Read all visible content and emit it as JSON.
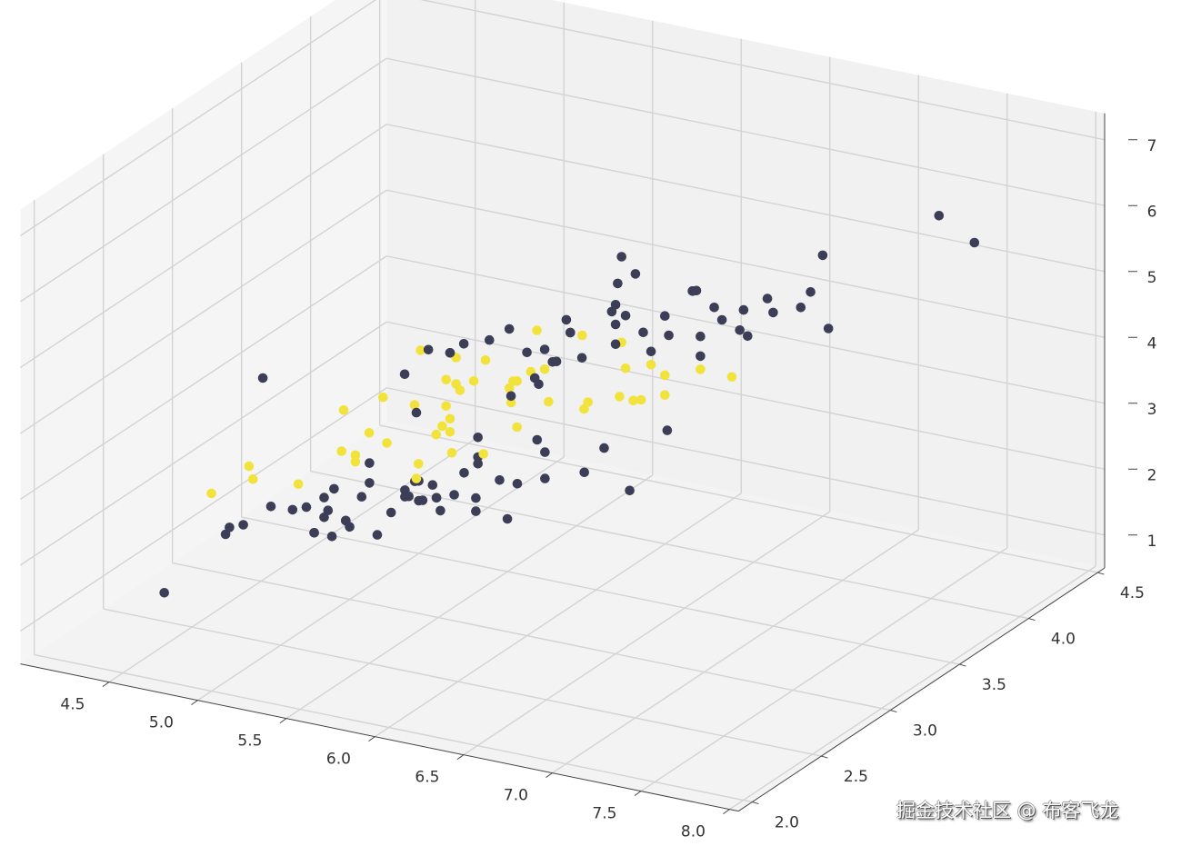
{
  "chart_data": {
    "type": "scatter3d",
    "title": "",
    "xlabel": "",
    "ylabel": "",
    "zlabel": "",
    "xlim": [
      4.0,
      8.05
    ],
    "ylim": [
      1.9,
      4.55
    ],
    "zlim": [
      0.5,
      7.4
    ],
    "grid": true,
    "x_ticks": [
      "4.5",
      "5.0",
      "5.5",
      "6.0",
      "6.5",
      "7.0",
      "7.5",
      "8.0"
    ],
    "y_ticks": [
      "2.0",
      "2.5",
      "3.0",
      "3.5",
      "4.0",
      "4.5"
    ],
    "z_ticks": [
      "1",
      "2",
      "3",
      "4",
      "5",
      "6",
      "7"
    ],
    "colors": {
      "class_0": "#3b3e56",
      "class_1": "#f2e33c",
      "pane": "#f4f4f4",
      "grid": "#d3d3d3",
      "axis": "#444444"
    },
    "points": [
      [
        5.1,
        3.5,
        1.4,
        0
      ],
      [
        4.9,
        3.0,
        1.4,
        0
      ],
      [
        4.7,
        3.2,
        1.3,
        0
      ],
      [
        4.6,
        3.1,
        1.5,
        0
      ],
      [
        5.0,
        3.6,
        1.4,
        0
      ],
      [
        5.4,
        3.9,
        1.7,
        0
      ],
      [
        4.6,
        3.4,
        1.4,
        0
      ],
      [
        5.0,
        3.4,
        1.5,
        0
      ],
      [
        4.4,
        2.9,
        1.4,
        0
      ],
      [
        4.9,
        3.1,
        1.5,
        0
      ],
      [
        5.4,
        3.7,
        1.5,
        0
      ],
      [
        4.8,
        3.4,
        1.6,
        0
      ],
      [
        4.8,
        3.0,
        1.4,
        0
      ],
      [
        4.3,
        3.0,
        1.1,
        0
      ],
      [
        5.8,
        4.0,
        1.2,
        0
      ],
      [
        5.7,
        4.4,
        1.5,
        0
      ],
      [
        5.4,
        3.9,
        1.3,
        0
      ],
      [
        5.1,
        3.5,
        1.4,
        0
      ],
      [
        5.7,
        3.8,
        1.7,
        0
      ],
      [
        5.1,
        3.8,
        1.5,
        0
      ],
      [
        5.4,
        3.4,
        1.7,
        0
      ],
      [
        5.1,
        3.7,
        1.5,
        0
      ],
      [
        4.6,
        3.6,
        1.0,
        0
      ],
      [
        5.1,
        3.3,
        1.7,
        0
      ],
      [
        4.8,
        3.4,
        1.9,
        0
      ],
      [
        5.0,
        3.0,
        1.6,
        0
      ],
      [
        5.0,
        3.4,
        1.6,
        0
      ],
      [
        5.2,
        3.5,
        1.5,
        0
      ],
      [
        5.2,
        3.4,
        1.4,
        0
      ],
      [
        4.7,
        3.2,
        1.6,
        0
      ],
      [
        4.8,
        3.1,
        1.6,
        0
      ],
      [
        5.4,
        3.4,
        1.5,
        0
      ],
      [
        5.2,
        4.1,
        1.5,
        0
      ],
      [
        5.5,
        4.2,
        1.4,
        0
      ],
      [
        4.9,
        3.1,
        1.5,
        0
      ],
      [
        5.0,
        3.2,
        1.2,
        0
      ],
      [
        5.5,
        3.5,
        1.3,
        0
      ],
      [
        4.9,
        3.6,
        1.4,
        0
      ],
      [
        4.4,
        3.0,
        1.3,
        0
      ],
      [
        5.1,
        3.4,
        1.5,
        0
      ],
      [
        5.0,
        3.5,
        1.3,
        0
      ],
      [
        4.5,
        2.3,
        1.3,
        0
      ],
      [
        4.4,
        3.2,
        1.3,
        0
      ],
      [
        5.0,
        3.5,
        1.6,
        0
      ],
      [
        5.1,
        3.8,
        1.9,
        0
      ],
      [
        4.8,
        3.0,
        1.4,
        0
      ],
      [
        5.1,
        3.8,
        1.6,
        0
      ],
      [
        4.6,
        3.2,
        1.4,
        0
      ],
      [
        5.3,
        3.7,
        1.5,
        0
      ],
      [
        5.0,
        3.3,
        1.4,
        0
      ],
      [
        7.0,
        3.2,
        4.7,
        1
      ],
      [
        6.4,
        3.2,
        4.5,
        1
      ],
      [
        6.9,
        3.1,
        4.9,
        1
      ],
      [
        5.5,
        2.3,
        4.0,
        1
      ],
      [
        6.5,
        2.8,
        4.6,
        1
      ],
      [
        5.7,
        2.8,
        4.5,
        1
      ],
      [
        6.3,
        3.3,
        4.7,
        1
      ],
      [
        4.9,
        2.4,
        3.3,
        1
      ],
      [
        6.6,
        2.9,
        4.6,
        1
      ],
      [
        5.2,
        2.7,
        3.9,
        1
      ],
      [
        5.0,
        2.0,
        3.5,
        1
      ],
      [
        5.9,
        3.0,
        4.2,
        1
      ],
      [
        6.0,
        2.2,
        4.0,
        1
      ],
      [
        6.1,
        2.9,
        4.7,
        1
      ],
      [
        5.6,
        2.9,
        3.6,
        1
      ],
      [
        6.7,
        3.1,
        4.4,
        1
      ],
      [
        5.6,
        3.0,
        4.5,
        1
      ],
      [
        5.8,
        2.7,
        4.1,
        1
      ],
      [
        6.2,
        2.2,
        4.5,
        1
      ],
      [
        5.6,
        2.5,
        3.9,
        1
      ],
      [
        5.9,
        3.2,
        4.8,
        1
      ],
      [
        6.1,
        2.8,
        4.0,
        1
      ],
      [
        6.3,
        2.5,
        4.9,
        1
      ],
      [
        6.1,
        2.8,
        4.7,
        1
      ],
      [
        6.4,
        2.9,
        4.3,
        1
      ],
      [
        6.6,
        3.0,
        4.4,
        1
      ],
      [
        6.8,
        2.8,
        4.8,
        1
      ],
      [
        6.7,
        3.0,
        5.0,
        1
      ],
      [
        6.0,
        2.9,
        4.5,
        1
      ],
      [
        5.7,
        2.6,
        3.5,
        1
      ],
      [
        5.5,
        2.4,
        3.8,
        1
      ],
      [
        5.5,
        2.4,
        3.7,
        1
      ],
      [
        5.8,
        2.7,
        3.9,
        1
      ],
      [
        6.0,
        2.7,
        5.1,
        1
      ],
      [
        5.4,
        3.0,
        4.5,
        1
      ],
      [
        6.0,
        3.4,
        4.5,
        1
      ],
      [
        6.7,
        3.1,
        4.7,
        1
      ],
      [
        6.3,
        2.3,
        4.4,
        1
      ],
      [
        5.6,
        3.0,
        4.1,
        1
      ],
      [
        5.5,
        2.5,
        4.0,
        1
      ],
      [
        5.5,
        2.6,
        4.4,
        1
      ],
      [
        6.1,
        3.0,
        4.6,
        1
      ],
      [
        5.8,
        2.6,
        4.0,
        1
      ],
      [
        5.0,
        2.3,
        3.3,
        1
      ],
      [
        5.6,
        2.7,
        4.2,
        1
      ],
      [
        5.7,
        3.0,
        4.2,
        1
      ],
      [
        5.7,
        2.9,
        4.2,
        1
      ],
      [
        6.2,
        2.9,
        4.3,
        1
      ],
      [
        5.1,
        2.5,
        3.0,
        1
      ],
      [
        5.7,
        2.8,
        4.1,
        1
      ],
      [
        6.3,
        3.3,
        6.0,
        0
      ],
      [
        5.8,
        2.7,
        5.1,
        0
      ],
      [
        7.1,
        3.0,
        5.9,
        0
      ],
      [
        6.3,
        2.9,
        5.6,
        0
      ],
      [
        6.5,
        3.0,
        5.8,
        0
      ],
      [
        7.6,
        3.0,
        6.6,
        0
      ],
      [
        4.9,
        2.5,
        4.5,
        0
      ],
      [
        7.3,
        2.9,
        6.3,
        0
      ],
      [
        6.7,
        2.5,
        5.8,
        0
      ],
      [
        7.2,
        3.6,
        6.1,
        0
      ],
      [
        6.5,
        3.2,
        5.1,
        0
      ],
      [
        6.4,
        2.7,
        5.3,
        0
      ],
      [
        6.8,
        3.0,
        5.5,
        0
      ],
      [
        5.7,
        2.5,
        5.0,
        0
      ],
      [
        5.8,
        2.8,
        5.1,
        0
      ],
      [
        6.4,
        3.2,
        5.3,
        0
      ],
      [
        6.5,
        3.0,
        5.5,
        0
      ],
      [
        7.7,
        3.8,
        6.7,
        0
      ],
      [
        7.7,
        2.6,
        6.9,
        0
      ],
      [
        6.0,
        2.2,
        5.0,
        0
      ],
      [
        6.9,
        3.2,
        5.7,
        0
      ],
      [
        5.6,
        2.8,
        4.9,
        0
      ],
      [
        7.7,
        2.8,
        6.7,
        0
      ],
      [
        6.3,
        2.7,
        4.9,
        0
      ],
      [
        6.7,
        3.3,
        5.7,
        0
      ],
      [
        7.2,
        3.2,
        6.0,
        0
      ],
      [
        6.2,
        2.8,
        4.8,
        0
      ],
      [
        6.1,
        3.0,
        4.9,
        0
      ],
      [
        6.4,
        2.8,
        5.6,
        0
      ],
      [
        7.2,
        3.0,
        5.8,
        0
      ],
      [
        7.4,
        2.8,
        6.1,
        0
      ],
      [
        7.9,
        3.8,
        6.4,
        0
      ],
      [
        6.4,
        2.8,
        5.6,
        0
      ],
      [
        6.3,
        2.8,
        5.1,
        0
      ],
      [
        6.1,
        2.6,
        5.6,
        0
      ],
      [
        7.7,
        3.0,
        6.1,
        0
      ],
      [
        6.3,
        3.4,
        5.6,
        0
      ],
      [
        6.4,
        3.1,
        5.5,
        0
      ],
      [
        6.0,
        3.0,
        4.8,
        0
      ],
      [
        6.9,
        3.1,
        5.4,
        0
      ],
      [
        6.7,
        3.1,
        5.6,
        0
      ],
      [
        6.9,
        3.1,
        5.1,
        0
      ],
      [
        5.8,
        2.7,
        5.1,
        0
      ],
      [
        6.8,
        3.2,
        5.9,
        0
      ],
      [
        6.7,
        3.3,
        5.7,
        0
      ],
      [
        6.7,
        3.0,
        5.2,
        0
      ],
      [
        6.3,
        2.5,
        5.0,
        0
      ],
      [
        6.5,
        3.0,
        5.2,
        0
      ],
      [
        6.2,
        3.4,
        5.4,
        0
      ],
      [
        5.9,
        3.0,
        5.1,
        0
      ]
    ]
  },
  "watermark": "掘金技术社区 @ 布客飞龙"
}
